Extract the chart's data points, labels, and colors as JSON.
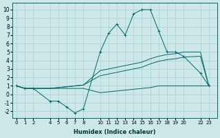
{
  "xlabel": "Humidex (Indice chaleur)",
  "bg_color": "#cce8e8",
  "grid_color": "#aacfcf",
  "line_color": "#006868",
  "xticks": [
    0,
    1,
    2,
    4,
    5,
    6,
    7,
    8,
    10,
    11,
    12,
    13,
    14,
    15,
    16,
    17,
    18,
    19,
    20,
    22,
    23
  ],
  "yticks": [
    -2,
    -1,
    0,
    1,
    2,
    3,
    4,
    5,
    6,
    7,
    8,
    9,
    10
  ],
  "ylim": [
    -2.8,
    10.8
  ],
  "xlim": [
    -0.5,
    24.0
  ],
  "series": [
    {
      "x": [
        0,
        1,
        2,
        4,
        5,
        6,
        7,
        8,
        10,
        11,
        12,
        13,
        14,
        15,
        16,
        17,
        18,
        19,
        20,
        22,
        23
      ],
      "y": [
        1.0,
        0.7,
        0.7,
        -0.8,
        -0.8,
        -1.5,
        -2.2,
        -1.7,
        5.0,
        7.2,
        8.3,
        7.0,
        9.5,
        10.0,
        10.0,
        7.5,
        5.0,
        5.0,
        4.5,
        2.5,
        1.0
      ],
      "marker": "+"
    },
    {
      "x": [
        0,
        1,
        2,
        4,
        5,
        6,
        7,
        8,
        10,
        11,
        12,
        13,
        14,
        15,
        16,
        17,
        18,
        19,
        20,
        22,
        23
      ],
      "y": [
        1.0,
        0.7,
        0.7,
        0.7,
        0.8,
        0.9,
        1.0,
        1.1,
        2.8,
        3.0,
        3.2,
        3.4,
        3.6,
        3.8,
        4.2,
        4.5,
        4.7,
        4.8,
        5.0,
        5.0,
        1.0
      ],
      "marker": null
    },
    {
      "x": [
        0,
        1,
        2,
        4,
        5,
        6,
        7,
        8,
        10,
        11,
        12,
        13,
        14,
        15,
        16,
        17,
        18,
        19,
        20,
        22,
        23
      ],
      "y": [
        1.0,
        0.7,
        0.7,
        0.7,
        0.8,
        0.9,
        1.0,
        1.1,
        2.2,
        2.4,
        2.6,
        2.8,
        3.0,
        3.2,
        3.6,
        3.9,
        4.1,
        4.2,
        4.4,
        4.5,
        1.0
      ],
      "marker": null
    },
    {
      "x": [
        0,
        1,
        2,
        4,
        5,
        6,
        7,
        8,
        10,
        11,
        12,
        13,
        14,
        15,
        16,
        17,
        18,
        19,
        20,
        22,
        23
      ],
      "y": [
        1.0,
        0.7,
        0.7,
        0.7,
        0.7,
        0.7,
        0.7,
        0.7,
        0.2,
        0.3,
        0.4,
        0.5,
        0.6,
        0.7,
        0.8,
        1.0,
        1.0,
        1.0,
        1.0,
        1.0,
        1.0
      ],
      "marker": null
    }
  ]
}
